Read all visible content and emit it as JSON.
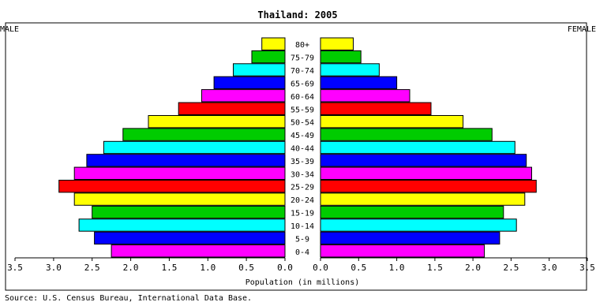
{
  "chart_data": {
    "type": "bar",
    "orientation": "horizontal-pyramid",
    "title": "Thailand: 2005",
    "left_label": "MALE",
    "right_label": "FEMALE",
    "xlabel": "Population (in millions)",
    "source": "Source: U.S. Census Bureau, International Data Base.",
    "xlim": [
      0,
      3.5
    ],
    "xticks": [
      "3.5",
      "3.0",
      "2.5",
      "2.0",
      "1.5",
      "1.0",
      "0.5",
      "0.0"
    ],
    "xticks_right": [
      "0.0",
      "0.5",
      "1.0",
      "1.5",
      "2.0",
      "2.5",
      "3.0",
      "3.5"
    ],
    "categories": [
      "0-4",
      "5-9",
      "10-14",
      "15-19",
      "20-24",
      "25-29",
      "30-34",
      "35-39",
      "40-44",
      "45-49",
      "50-54",
      "55-59",
      "60-64",
      "65-69",
      "70-74",
      "75-79",
      "80+"
    ],
    "series": [
      {
        "name": "MALE",
        "values": [
          2.25,
          2.47,
          2.67,
          2.5,
          2.73,
          2.93,
          2.73,
          2.57,
          2.35,
          2.1,
          1.77,
          1.38,
          1.08,
          0.92,
          0.67,
          0.43,
          0.3
        ]
      },
      {
        "name": "FEMALE",
        "values": [
          2.15,
          2.35,
          2.57,
          2.4,
          2.68,
          2.83,
          2.77,
          2.7,
          2.55,
          2.25,
          1.87,
          1.45,
          1.17,
          1.0,
          0.77,
          0.53,
          0.43
        ]
      }
    ],
    "colors": [
      "#ff00ff",
      "#0000ff",
      "#00ffff",
      "#00cc00",
      "#ffff00",
      "#ff0000",
      "#ff00ff",
      "#0000ff",
      "#00ffff",
      "#00cc00",
      "#ffff00",
      "#ff0000",
      "#ff00ff",
      "#0000ff",
      "#00ffff",
      "#00cc00",
      "#ffff00"
    ],
    "grid": false,
    "legend": "none"
  }
}
